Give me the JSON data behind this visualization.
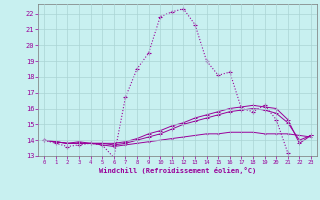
{
  "xlabel": "Windchill (Refroidissement éolien,°C)",
  "bg_color": "#c8f0f0",
  "line_color": "#990099",
  "grid_color": "#aad4d4",
  "xlim": [
    -0.5,
    23.5
  ],
  "ylim": [
    13.0,
    22.6
  ],
  "xticks": [
    0,
    1,
    2,
    3,
    4,
    5,
    6,
    7,
    8,
    9,
    10,
    11,
    12,
    13,
    14,
    15,
    16,
    17,
    18,
    19,
    20,
    21,
    22,
    23
  ],
  "yticks": [
    13,
    14,
    15,
    16,
    17,
    18,
    19,
    20,
    21,
    22
  ],
  "series1_x": [
    0,
    1,
    2,
    3,
    4,
    5,
    6,
    7,
    8,
    9,
    10,
    11,
    12,
    13,
    14,
    15,
    16,
    17,
    18,
    19,
    20,
    21
  ],
  "series1_y": [
    14.0,
    13.8,
    13.6,
    13.7,
    13.8,
    13.7,
    12.9,
    16.7,
    18.5,
    19.5,
    21.8,
    22.1,
    22.3,
    21.3,
    19.0,
    18.1,
    18.3,
    16.0,
    15.8,
    16.2,
    15.3,
    13.2
  ],
  "series2_x": [
    0,
    1,
    2,
    3,
    4,
    5,
    6,
    7,
    8,
    9,
    10,
    11,
    12,
    13,
    14,
    15,
    16,
    17,
    18,
    19,
    20,
    21,
    22,
    23
  ],
  "series2_y": [
    14.0,
    13.9,
    13.8,
    13.9,
    13.8,
    13.8,
    13.8,
    13.9,
    14.1,
    14.4,
    14.6,
    14.9,
    15.1,
    15.4,
    15.6,
    15.8,
    16.0,
    16.1,
    16.2,
    16.1,
    16.0,
    15.3,
    13.8,
    14.3
  ],
  "series3_x": [
    0,
    1,
    2,
    3,
    4,
    5,
    6,
    7,
    8,
    9,
    10,
    11,
    12,
    13,
    14,
    15,
    16,
    17,
    18,
    19,
    20,
    21,
    22,
    23
  ],
  "series3_y": [
    14.0,
    13.9,
    13.8,
    13.8,
    13.8,
    13.8,
    13.7,
    13.8,
    14.0,
    14.2,
    14.4,
    14.7,
    15.0,
    15.2,
    15.4,
    15.6,
    15.8,
    15.9,
    16.0,
    15.9,
    15.7,
    15.1,
    14.0,
    14.3
  ],
  "series4_x": [
    0,
    1,
    2,
    3,
    4,
    5,
    6,
    7,
    8,
    9,
    10,
    11,
    12,
    13,
    14,
    15,
    16,
    17,
    18,
    19,
    20,
    21,
    22,
    23
  ],
  "series4_y": [
    14.0,
    13.9,
    13.8,
    13.8,
    13.8,
    13.7,
    13.6,
    13.7,
    13.8,
    13.9,
    14.0,
    14.1,
    14.2,
    14.3,
    14.4,
    14.4,
    14.5,
    14.5,
    14.5,
    14.4,
    14.4,
    14.4,
    14.3,
    14.2
  ]
}
